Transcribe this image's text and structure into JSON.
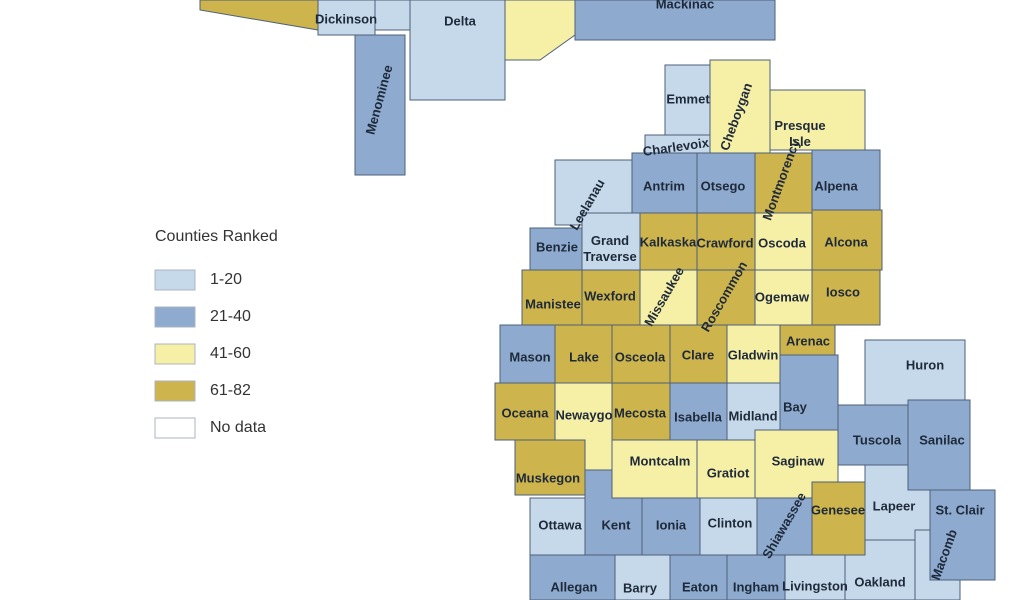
{
  "legend": {
    "title": "Counties Ranked",
    "items": [
      {
        "label": "1-20",
        "color": "#c6d9eb",
        "counties": [
          "Dickinson",
          "Delta",
          "Emmet",
          "Charlevoix",
          "Leelanau",
          "Grand Traverse",
          "Midland",
          "Huron",
          "Lapeer",
          "Ottawa",
          "Clinton",
          "Barry",
          "Livingston",
          "Oakland",
          "Macomb"
        ]
      },
      {
        "label": "21-40",
        "color": "#8eaacf",
        "counties": [
          "Menominee",
          "Mackinac",
          "Antrim",
          "Otsego",
          "Alpena",
          "Benzie",
          "Mason",
          "Isabella",
          "Bay",
          "Tuscola",
          "Sanilac",
          "Kent",
          "Ionia",
          "Shiawassee",
          "St. Clair",
          "Allegan",
          "Eaton",
          "Ingham"
        ]
      },
      {
        "label": "41-60",
        "color": "#f6efa6",
        "counties": [
          "Cheboygan",
          "Presque Isle",
          "Oscoda",
          "Missaukee",
          "Ogemaw",
          "Gladwin",
          "Newaygo",
          "Montcalm",
          "Gratiot",
          "Saginaw"
        ]
      },
      {
        "label": "61-82",
        "color": "#cdb44c",
        "counties": [
          "Montmorency",
          "Kalkaska",
          "Crawford",
          "Alcona",
          "Manistee",
          "Wexford",
          "Roscommon",
          "Iosco",
          "Lake",
          "Osceola",
          "Clare",
          "Arenac",
          "Oceana",
          "Mecosta",
          "Muskegon",
          "Genesee"
        ]
      },
      {
        "label": "No data",
        "color": "#ffffff",
        "counties": []
      }
    ]
  }
}
